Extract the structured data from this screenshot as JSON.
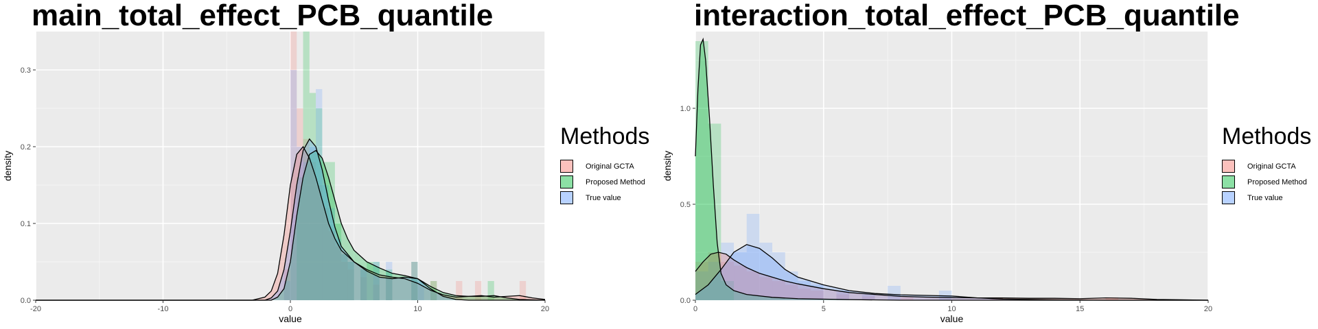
{
  "legend": {
    "title": "Methods",
    "items": [
      {
        "label": "Original GCTA",
        "color": "#F8766D"
      },
      {
        "label": "Proposed Method",
        "color": "#00BA38"
      },
      {
        "label": "True value",
        "color": "#619CFF"
      }
    ]
  },
  "chart_data": [
    {
      "type": "area",
      "title": "main_total_effect_PCB_quantile",
      "xlabel": "value",
      "ylabel": "density",
      "xlim": [
        -20,
        20
      ],
      "ylim": [
        0,
        0.35
      ],
      "x_ticks": [
        -20,
        -10,
        0,
        10,
        20
      ],
      "y_ticks": [
        0.0,
        0.1,
        0.2,
        0.3
      ],
      "y_tick_labels": [
        "0.0",
        "0.1",
        "0.2",
        "0.3"
      ],
      "grid": true,
      "legend_position": "right",
      "bin_width": 0.5,
      "histograms": [
        {
          "name": "Original GCTA",
          "color": "#F8766D",
          "bins": [
            {
              "x": -0.25,
              "y": 0.04
            },
            {
              "x": 0.25,
              "y": 0.35
            },
            {
              "x": 0.75,
              "y": 0.25
            },
            {
              "x": 1.25,
              "y": 0.21
            },
            {
              "x": 1.75,
              "y": 0.18
            },
            {
              "x": 2.25,
              "y": 0.15
            },
            {
              "x": 2.75,
              "y": 0.12
            },
            {
              "x": 3.25,
              "y": 0.09
            },
            {
              "x": 3.75,
              "y": 0.07
            },
            {
              "x": 4.25,
              "y": 0.05
            },
            {
              "x": 4.75,
              "y": 0.04
            },
            {
              "x": 5.75,
              "y": 0.03
            },
            {
              "x": 6.75,
              "y": 0.02
            },
            {
              "x": 7.75,
              "y": 0.03
            },
            {
              "x": 9.75,
              "y": 0.05
            },
            {
              "x": 11.25,
              "y": 0.025
            },
            {
              "x": 13.25,
              "y": 0.025
            },
            {
              "x": 14.75,
              "y": 0.025
            },
            {
              "x": 18.25,
              "y": 0.025
            }
          ]
        },
        {
          "name": "Proposed Method",
          "color": "#00BA38",
          "bins": [
            {
              "x": 0.75,
              "y": 0.16
            },
            {
              "x": 1.25,
              "y": 0.35
            },
            {
              "x": 1.75,
              "y": 0.27
            },
            {
              "x": 2.25,
              "y": 0.25
            },
            {
              "x": 2.75,
              "y": 0.18
            },
            {
              "x": 3.25,
              "y": 0.18
            },
            {
              "x": 3.75,
              "y": 0.1
            },
            {
              "x": 4.25,
              "y": 0.06
            },
            {
              "x": 4.75,
              "y": 0.05
            },
            {
              "x": 5.75,
              "y": 0.04
            },
            {
              "x": 6.25,
              "y": 0.05
            },
            {
              "x": 6.75,
              "y": 0.05
            },
            {
              "x": 7.75,
              "y": 0.04
            },
            {
              "x": 9.75,
              "y": 0.05
            },
            {
              "x": 11.25,
              "y": 0.025
            },
            {
              "x": 15.75,
              "y": 0.025
            }
          ]
        },
        {
          "name": "True value",
          "color": "#619CFF",
          "bins": [
            {
              "x": -0.25,
              "y": 0.025
            },
            {
              "x": 0.25,
              "y": 0.3
            },
            {
              "x": 0.75,
              "y": 0.2
            },
            {
              "x": 1.25,
              "y": 0.18
            },
            {
              "x": 1.75,
              "y": 0.2
            },
            {
              "x": 2.25,
              "y": 0.275
            },
            {
              "x": 2.75,
              "y": 0.15
            },
            {
              "x": 3.25,
              "y": 0.12
            },
            {
              "x": 3.75,
              "y": 0.08
            },
            {
              "x": 4.25,
              "y": 0.06
            },
            {
              "x": 4.75,
              "y": 0.05
            },
            {
              "x": 5.75,
              "y": 0.04
            },
            {
              "x": 6.75,
              "y": 0.05
            },
            {
              "x": 7.75,
              "y": 0.05
            },
            {
              "x": 9.75,
              "y": 0.05
            },
            {
              "x": 10.25,
              "y": 0.025
            }
          ]
        }
      ],
      "series": [
        {
          "name": "Original GCTA",
          "color": "#F8766D",
          "points": [
            [
              -20,
              0
            ],
            [
              -3,
              0
            ],
            [
              -2,
              0.004
            ],
            [
              -1.5,
              0.012
            ],
            [
              -1,
              0.035
            ],
            [
              -0.5,
              0.085
            ],
            [
              0,
              0.15
            ],
            [
              0.5,
              0.19
            ],
            [
              1,
              0.2
            ],
            [
              1.5,
              0.185
            ],
            [
              2,
              0.16
            ],
            [
              2.5,
              0.13
            ],
            [
              3,
              0.1
            ],
            [
              3.5,
              0.08
            ],
            [
              4,
              0.065
            ],
            [
              5,
              0.05
            ],
            [
              6,
              0.04
            ],
            [
              7,
              0.033
            ],
            [
              8,
              0.03
            ],
            [
              9,
              0.028
            ],
            [
              10,
              0.022
            ],
            [
              11,
              0.013
            ],
            [
              12,
              0.007
            ],
            [
              13,
              0.004
            ],
            [
              14,
              0.005
            ],
            [
              15,
              0.006
            ],
            [
              16,
              0.004
            ],
            [
              17,
              0.005
            ],
            [
              18,
              0.006
            ],
            [
              19,
              0.003
            ],
            [
              20,
              0.001
            ]
          ]
        },
        {
          "name": "Proposed Method",
          "color": "#00BA38",
          "points": [
            [
              -20,
              0
            ],
            [
              -1.5,
              0
            ],
            [
              -1,
              0.004
            ],
            [
              -0.5,
              0.015
            ],
            [
              0,
              0.05
            ],
            [
              0.5,
              0.11
            ],
            [
              1,
              0.16
            ],
            [
              1.5,
              0.19
            ],
            [
              2,
              0.195
            ],
            [
              2.5,
              0.185
            ],
            [
              3,
              0.16
            ],
            [
              3.5,
              0.13
            ],
            [
              4,
              0.1
            ],
            [
              4.5,
              0.08
            ],
            [
              5,
              0.065
            ],
            [
              6,
              0.05
            ],
            [
              7,
              0.042
            ],
            [
              8,
              0.035
            ],
            [
              9,
              0.032
            ],
            [
              10,
              0.028
            ],
            [
              11,
              0.018
            ],
            [
              12,
              0.01
            ],
            [
              13,
              0.006
            ],
            [
              14,
              0.005
            ],
            [
              15,
              0.005
            ],
            [
              16,
              0.006
            ],
            [
              17,
              0.003
            ],
            [
              18,
              0.001
            ],
            [
              20,
              0
            ]
          ]
        },
        {
          "name": "True value",
          "color": "#619CFF",
          "points": [
            [
              -20,
              0
            ],
            [
              -2,
              0
            ],
            [
              -1.5,
              0.003
            ],
            [
              -1,
              0.012
            ],
            [
              -0.5,
              0.04
            ],
            [
              0,
              0.09
            ],
            [
              0.5,
              0.15
            ],
            [
              1,
              0.195
            ],
            [
              1.5,
              0.21
            ],
            [
              2,
              0.2
            ],
            [
              2.5,
              0.17
            ],
            [
              3,
              0.13
            ],
            [
              3.5,
              0.095
            ],
            [
              4,
              0.07
            ],
            [
              5,
              0.05
            ],
            [
              6,
              0.038
            ],
            [
              7,
              0.03
            ],
            [
              8,
              0.028
            ],
            [
              9,
              0.03
            ],
            [
              10,
              0.028
            ],
            [
              11,
              0.015
            ],
            [
              12,
              0.005
            ],
            [
              13,
              0.001
            ],
            [
              14,
              0
            ],
            [
              20,
              0
            ]
          ]
        }
      ]
    },
    {
      "type": "area",
      "title": "interaction_total_effect_PCB_quantile",
      "xlabel": "value",
      "ylabel": "density",
      "xlim": [
        0,
        20
      ],
      "ylim": [
        0,
        1.4
      ],
      "x_ticks": [
        0,
        5,
        10,
        15,
        20
      ],
      "y_ticks": [
        0.0,
        0.5,
        1.0
      ],
      "y_tick_labels": [
        "0.0",
        "0.5",
        "1.0"
      ],
      "grid": true,
      "legend_position": "right",
      "bin_width": 0.5,
      "histograms": [
        {
          "name": "Original GCTA",
          "color": "#F8766D",
          "bins": [
            {
              "x": 0.25,
              "y": 0.2
            },
            {
              "x": 0.75,
              "y": 0.25
            },
            {
              "x": 1.25,
              "y": 0.2
            },
            {
              "x": 1.75,
              "y": 0.18
            },
            {
              "x": 2.25,
              "y": 0.15
            },
            {
              "x": 2.75,
              "y": 0.12
            },
            {
              "x": 3.25,
              "y": 0.1
            },
            {
              "x": 3.75,
              "y": 0.08
            },
            {
              "x": 4.25,
              "y": 0.06
            },
            {
              "x": 4.75,
              "y": 0.05
            },
            {
              "x": 5.75,
              "y": 0.03
            },
            {
              "x": 6.75,
              "y": 0.02
            },
            {
              "x": 8.25,
              "y": 0.015
            },
            {
              "x": 11.75,
              "y": 0.015
            },
            {
              "x": 16.25,
              "y": 0.015
            }
          ]
        },
        {
          "name": "Proposed Method",
          "color": "#00BA38",
          "bins": [
            {
              "x": 0.25,
              "y": 1.35
            },
            {
              "x": 0.75,
              "y": 0.92
            },
            {
              "x": 1.25,
              "y": 0.1
            }
          ]
        },
        {
          "name": "True value",
          "color": "#619CFF",
          "bins": [
            {
              "x": 0.25,
              "y": 0.15
            },
            {
              "x": 0.75,
              "y": 0.2
            },
            {
              "x": 1.25,
              "y": 0.3
            },
            {
              "x": 1.75,
              "y": 0.25
            },
            {
              "x": 2.25,
              "y": 0.45
            },
            {
              "x": 2.75,
              "y": 0.3
            },
            {
              "x": 3.25,
              "y": 0.25
            },
            {
              "x": 3.75,
              "y": 0.15
            },
            {
              "x": 4.25,
              "y": 0.1
            },
            {
              "x": 4.75,
              "y": 0.08
            },
            {
              "x": 5.75,
              "y": 0.05
            },
            {
              "x": 6.75,
              "y": 0.03
            },
            {
              "x": 7.75,
              "y": 0.075
            },
            {
              "x": 9.75,
              "y": 0.05
            }
          ]
        }
      ],
      "series": [
        {
          "name": "Original GCTA",
          "color": "#F8766D",
          "points": [
            [
              0,
              0.15
            ],
            [
              0.3,
              0.2
            ],
            [
              0.6,
              0.24
            ],
            [
              0.9,
              0.25
            ],
            [
              1.2,
              0.24
            ],
            [
              1.5,
              0.21
            ],
            [
              2,
              0.17
            ],
            [
              2.5,
              0.14
            ],
            [
              3,
              0.12
            ],
            [
              3.5,
              0.1
            ],
            [
              4,
              0.085
            ],
            [
              5,
              0.06
            ],
            [
              6,
              0.04
            ],
            [
              7,
              0.03
            ],
            [
              8,
              0.02
            ],
            [
              9,
              0.016
            ],
            [
              10,
              0.014
            ],
            [
              11,
              0.012
            ],
            [
              12,
              0.012
            ],
            [
              13,
              0.01
            ],
            [
              14,
              0.01
            ],
            [
              15,
              0.008
            ],
            [
              16,
              0.012
            ],
            [
              17,
              0.01
            ],
            [
              18,
              0.004
            ],
            [
              19,
              0.002
            ],
            [
              20,
              0
            ]
          ]
        },
        {
          "name": "Proposed Method",
          "color": "#00BA38",
          "points": [
            [
              0,
              0.75
            ],
            [
              0.1,
              1.1
            ],
            [
              0.2,
              1.33
            ],
            [
              0.3,
              1.36
            ],
            [
              0.4,
              1.25
            ],
            [
              0.55,
              0.95
            ],
            [
              0.7,
              0.6
            ],
            [
              0.85,
              0.3
            ],
            [
              1,
              0.14
            ],
            [
              1.2,
              0.08
            ],
            [
              1.5,
              0.05
            ],
            [
              2,
              0.03
            ],
            [
              3,
              0.015
            ],
            [
              4,
              0.008
            ],
            [
              6,
              0.003
            ],
            [
              8,
              0
            ],
            [
              20,
              0
            ]
          ]
        },
        {
          "name": "True value",
          "color": "#619CFF",
          "points": [
            [
              0,
              0.03
            ],
            [
              0.5,
              0.08
            ],
            [
              1,
              0.16
            ],
            [
              1.5,
              0.25
            ],
            [
              2,
              0.29
            ],
            [
              2.5,
              0.27
            ],
            [
              3,
              0.22
            ],
            [
              3.5,
              0.16
            ],
            [
              4,
              0.12
            ],
            [
              5,
              0.08
            ],
            [
              6,
              0.05
            ],
            [
              7,
              0.035
            ],
            [
              8,
              0.028
            ],
            [
              9,
              0.025
            ],
            [
              10,
              0.022
            ],
            [
              11,
              0.012
            ],
            [
              12,
              0.006
            ],
            [
              13,
              0.004
            ],
            [
              14,
              0.002
            ],
            [
              16,
              0
            ],
            [
              20,
              0
            ]
          ]
        }
      ]
    }
  ]
}
